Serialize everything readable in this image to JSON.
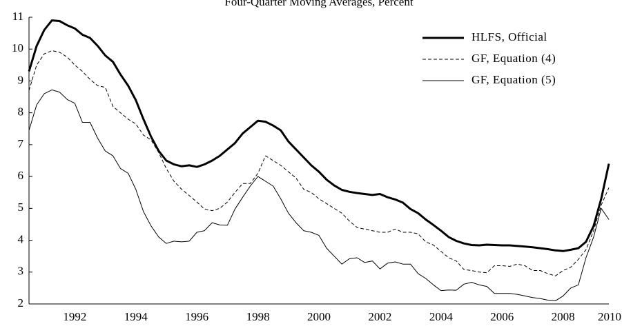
{
  "chart_data": {
    "type": "line",
    "title": "Four-Quarter Moving Averages, Percent",
    "x": [
      1991,
      1991.25,
      1991.5,
      1991.75,
      1992,
      1992.25,
      1992.5,
      1992.75,
      1993,
      1993.25,
      1993.5,
      1993.75,
      1994,
      1994.25,
      1994.5,
      1994.75,
      1995,
      1995.25,
      1995.5,
      1995.75,
      1996,
      1996.25,
      1996.5,
      1996.75,
      1997,
      1997.25,
      1997.5,
      1997.75,
      1998,
      1998.25,
      1998.5,
      1998.75,
      1999,
      1999.25,
      1999.5,
      1999.75,
      2000,
      2000.25,
      2000.5,
      2000.75,
      2001,
      2001.25,
      2001.5,
      2001.75,
      2002,
      2002.25,
      2002.5,
      2002.75,
      2003,
      2003.25,
      2003.5,
      2003.75,
      2004,
      2004.25,
      2004.5,
      2004.75,
      2005,
      2005.25,
      2005.5,
      2005.75,
      2006,
      2006.25,
      2006.5,
      2006.75,
      2007,
      2007.25,
      2007.5,
      2007.75,
      2008,
      2008.25,
      2008.5,
      2008.75,
      2009,
      2009.25,
      2009.5,
      2009.75,
      2010
    ],
    "series": [
      {
        "name": "HLFS, Official",
        "color": "#000000",
        "width": 3,
        "dash": "none",
        "values": [
          9.3,
          10.1,
          10.6,
          10.9,
          10.88,
          10.75,
          10.65,
          10.45,
          10.35,
          10.1,
          9.8,
          9.6,
          9.2,
          8.85,
          8.4,
          7.8,
          7.25,
          6.8,
          6.5,
          6.38,
          6.32,
          6.35,
          6.3,
          6.38,
          6.5,
          6.65,
          6.85,
          7.05,
          7.35,
          7.55,
          7.75,
          7.72,
          7.6,
          7.45,
          7.1,
          6.85,
          6.6,
          6.35,
          6.15,
          5.9,
          5.72,
          5.58,
          5.52,
          5.48,
          5.45,
          5.42,
          5.45,
          5.35,
          5.28,
          5.18,
          4.98,
          4.85,
          4.65,
          4.48,
          4.3,
          4.1,
          3.98,
          3.9,
          3.85,
          3.84,
          3.86,
          3.85,
          3.84,
          3.84,
          3.82,
          3.8,
          3.78,
          3.75,
          3.72,
          3.68,
          3.66,
          3.7,
          3.75,
          3.95,
          4.45,
          5.3,
          6.4
        ]
      },
      {
        "name": "GF, Equation (4)",
        "color": "#000000",
        "width": 1,
        "dash": "5,3",
        "values": [
          8.7,
          9.5,
          9.85,
          9.95,
          9.9,
          9.75,
          9.5,
          9.3,
          9.05,
          8.85,
          8.8,
          8.2,
          8.0,
          7.8,
          7.65,
          7.3,
          7.15,
          6.75,
          6.25,
          5.85,
          5.6,
          5.4,
          5.2,
          4.98,
          4.93,
          5.0,
          5.2,
          5.5,
          5.78,
          5.78,
          6.1,
          6.65,
          6.5,
          6.35,
          6.15,
          5.95,
          5.6,
          5.5,
          5.3,
          5.15,
          5.0,
          4.85,
          4.6,
          4.4,
          4.35,
          4.3,
          4.25,
          4.25,
          4.35,
          4.25,
          4.25,
          4.2,
          3.95,
          3.85,
          3.65,
          3.45,
          3.35,
          3.08,
          3.05,
          3.0,
          2.98,
          3.2,
          3.2,
          3.18,
          3.25,
          3.2,
          3.05,
          3.05,
          2.95,
          2.88,
          3.05,
          3.15,
          3.4,
          3.7,
          4.3,
          5.1,
          5.65
        ]
      },
      {
        "name": "GF, Equation (5)",
        "color": "#000000",
        "width": 1,
        "dash": "none",
        "values": [
          7.45,
          8.25,
          8.6,
          8.72,
          8.65,
          8.42,
          8.3,
          7.7,
          7.7,
          7.2,
          6.8,
          6.65,
          6.25,
          6.1,
          5.6,
          4.9,
          4.45,
          4.1,
          3.9,
          3.97,
          3.95,
          3.97,
          4.25,
          4.3,
          4.55,
          4.48,
          4.47,
          4.98,
          5.35,
          5.7,
          6.0,
          5.85,
          5.7,
          5.3,
          4.85,
          4.55,
          4.3,
          4.25,
          4.15,
          3.75,
          3.5,
          3.25,
          3.42,
          3.45,
          3.3,
          3.35,
          3.1,
          3.28,
          3.32,
          3.25,
          3.25,
          2.95,
          2.8,
          2.6,
          2.42,
          2.44,
          2.43,
          2.62,
          2.68,
          2.6,
          2.55,
          2.33,
          2.33,
          2.33,
          2.3,
          2.25,
          2.2,
          2.17,
          2.12,
          2.1,
          2.25,
          2.5,
          2.6,
          3.45,
          4.1,
          5.0,
          4.65
        ]
      }
    ],
    "xlim": [
      1991,
      2010
    ],
    "xticks": [
      {
        "value": 1992.5,
        "label": "1992"
      },
      {
        "value": 1994.5,
        "label": "1994"
      },
      {
        "value": 1996.5,
        "label": "1996"
      },
      {
        "value": 1998.5,
        "label": "1998"
      },
      {
        "value": 2000.5,
        "label": "2000"
      },
      {
        "value": 2002.5,
        "label": "2002"
      },
      {
        "value": 2004.5,
        "label": "2004"
      },
      {
        "value": 2006.5,
        "label": "2006"
      },
      {
        "value": 2008.5,
        "label": "2008"
      },
      {
        "value": 2010.5,
        "label": "2010"
      }
    ],
    "ylim": [
      2,
      11
    ],
    "yticks": [
      2,
      3,
      4,
      5,
      6,
      7,
      8,
      9,
      10,
      11
    ],
    "legend": "top-right"
  }
}
